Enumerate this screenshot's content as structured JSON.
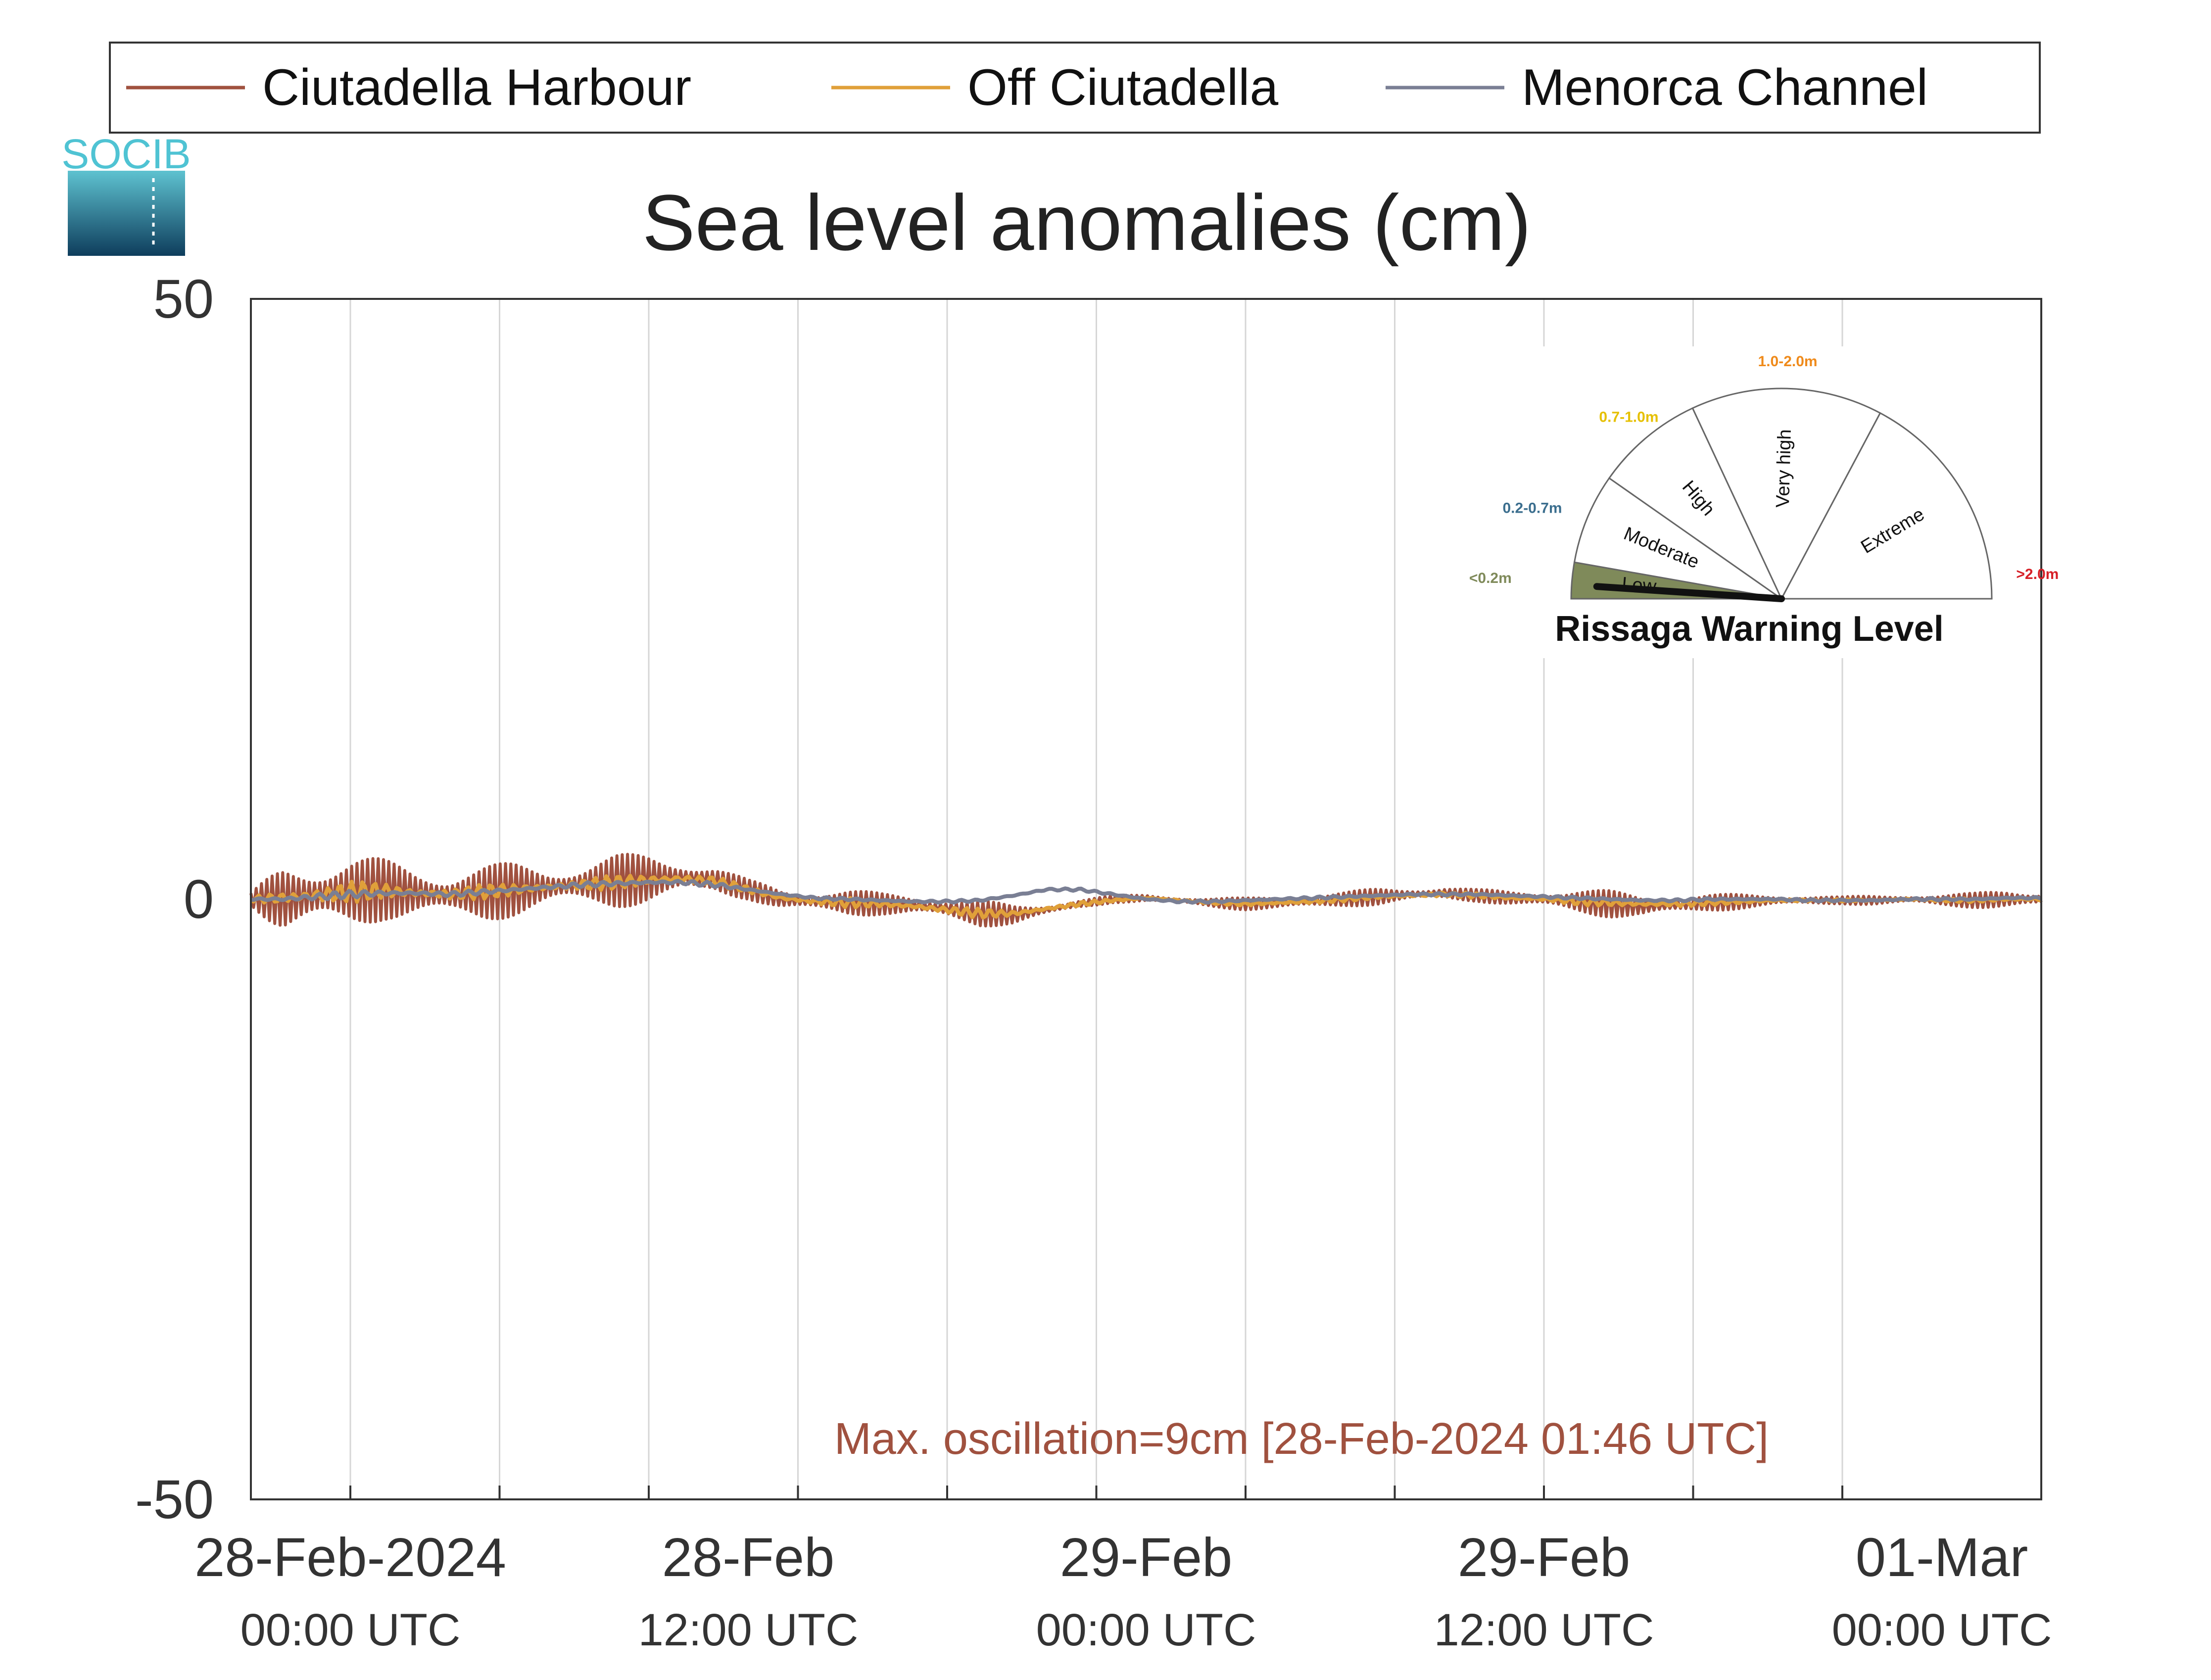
{
  "logo": {
    "text": "SOCIB"
  },
  "chart_data": {
    "type": "line",
    "title": "Sea level anomalies (cm)",
    "xlabel": "",
    "ylabel": "",
    "ylim": [
      -50,
      50
    ],
    "yticks": [
      "50",
      "0",
      "-50"
    ],
    "x_unit": "hours since 28-Feb-2024 00:00 UTC",
    "xlim": [
      -3,
      51
    ],
    "xticks": [
      {
        "x": 0,
        "line1": "28-Feb-2024",
        "line2": "00:00 UTC"
      },
      {
        "x": 12,
        "line1": "28-Feb",
        "line2": "12:00 UTC"
      },
      {
        "x": 24,
        "line1": "29-Feb",
        "line2": "00:00 UTC"
      },
      {
        "x": 36,
        "line1": "29-Feb",
        "line2": "12:00 UTC"
      },
      {
        "x": 48,
        "line1": "01-Mar",
        "line2": "00:00 UTC"
      }
    ],
    "grid": "vertical",
    "legend_position": "top",
    "series": [
      {
        "name": "Ciutadella Harbour",
        "color": "#a0513f",
        "x": [
          -3,
          -2,
          -1,
          0,
          1,
          2,
          3,
          4,
          5,
          6,
          7,
          8,
          9,
          10,
          11,
          12,
          13,
          14,
          15,
          16,
          17,
          18,
          19,
          20,
          21,
          22,
          23,
          24,
          25,
          26,
          27,
          28,
          29,
          30,
          31,
          32,
          33,
          34,
          35,
          36,
          37,
          38,
          39,
          40,
          41,
          42,
          43,
          44,
          45,
          46,
          47,
          48,
          49,
          50,
          51
        ],
        "mean": [
          0,
          0,
          0.3,
          0.6,
          0.8,
          0.5,
          0.3,
          0.5,
          0.8,
          1.0,
          1.2,
          1.5,
          1.7,
          1.8,
          1.6,
          0.8,
          0.0,
          -0.2,
          -0.3,
          -0.4,
          -0.5,
          -0.8,
          -1.2,
          -1.3,
          -0.9,
          -0.4,
          0.0,
          0.1,
          -0.1,
          -0.3,
          -0.4,
          -0.3,
          -0.2,
          0.0,
          0.2,
          0.4,
          0.5,
          0.3,
          0.1,
          0.0,
          -0.2,
          -0.4,
          -0.6,
          -0.5,
          -0.3,
          -0.2,
          -0.1,
          -0.1,
          -0.1,
          -0.1,
          0.0,
          -0.1,
          -0.1,
          0.0,
          0.0
        ],
        "amp": [
          0.5,
          3.0,
          3.5,
          3.2,
          2.5,
          2.2,
          2.3,
          2.4,
          2.2,
          1.8,
          1.9,
          2.2,
          2.1,
          1.8,
          1.2,
          0.8,
          0.9,
          1.0,
          1.1,
          0.9,
          0.9,
          1.0,
          1.1,
          0.8,
          0.5,
          0.4,
          0.3,
          0.3,
          0.3,
          0.4,
          0.5,
          0.6,
          0.6,
          0.6,
          0.7,
          0.6,
          0.6,
          0.5,
          0.6,
          0.8,
          1.0,
          1.1,
          1.0,
          0.8,
          0.7,
          0.6,
          0.5,
          0.4,
          0.3,
          0.4,
          0.4,
          0.5,
          0.6,
          0.8,
          0.8
        ]
      },
      {
        "name": "Off Ciutadella",
        "color": "#e0a03a",
        "x": [
          -3,
          -2,
          -1,
          0,
          1,
          2,
          3,
          4,
          5,
          6,
          7,
          8,
          9,
          10,
          11,
          12,
          13,
          14,
          15,
          16,
          17,
          18,
          19,
          20,
          21,
          22,
          23,
          24,
          25,
          26,
          27,
          28,
          29,
          30,
          31,
          32,
          33,
          34,
          35,
          36,
          37,
          38,
          39,
          40,
          41,
          42,
          43,
          44,
          45,
          46,
          47,
          48,
          49,
          50,
          51
        ],
        "mean": [
          0,
          0.1,
          0.3,
          0.6,
          0.7,
          0.5,
          0.4,
          0.6,
          0.8,
          1.0,
          1.2,
          1.4,
          1.6,
          1.7,
          1.5,
          0.8,
          0.1,
          -0.2,
          -0.3,
          -0.4,
          -0.6,
          -0.9,
          -1.2,
          -1.2,
          -0.8,
          -0.4,
          -0.1,
          0.1,
          -0.1,
          -0.3,
          -0.4,
          -0.3,
          -0.2,
          0.0,
          0.2,
          0.3,
          0.4,
          0.3,
          0.1,
          0.0,
          -0.2,
          -0.3,
          -0.4,
          -0.4,
          -0.3,
          -0.2,
          -0.1,
          -0.1,
          -0.1,
          -0.1,
          0.0,
          -0.1,
          -0.1,
          0.0,
          0.0
        ],
        "amp": [
          0.2,
          0.8,
          0.9,
          0.9,
          0.7,
          0.6,
          0.6,
          0.6,
          0.6,
          0.5,
          0.5,
          0.6,
          0.6,
          0.5,
          0.4,
          0.3,
          0.3,
          0.3,
          0.4,
          0.3,
          0.3,
          0.3,
          0.4,
          0.3,
          0.2,
          0.2,
          0.1,
          0.1,
          0.1,
          0.1,
          0.2,
          0.2,
          0.2,
          0.2,
          0.2,
          0.2,
          0.2,
          0.2,
          0.2,
          0.2,
          0.3,
          0.3,
          0.3,
          0.3,
          0.2,
          0.2,
          0.2,
          0.1,
          0.1,
          0.1,
          0.1,
          0.1,
          0.2,
          0.2,
          0.2
        ]
      },
      {
        "name": "Menorca Channel",
        "color": "#7a7f94",
        "x": [
          -3,
          -2,
          -1,
          0,
          1,
          2,
          3,
          4,
          5,
          6,
          7,
          8,
          9,
          10,
          11,
          12,
          13,
          14,
          15,
          16,
          17,
          18,
          19,
          20,
          21,
          22,
          23,
          24,
          25,
          26,
          27,
          28,
          29,
          30,
          31,
          32,
          33,
          34,
          35,
          36,
          37,
          38,
          39,
          40,
          41,
          42,
          43,
          44,
          45,
          46,
          47,
          48,
          49,
          50,
          51
        ],
        "mean": [
          0,
          0.0,
          0.2,
          0.4,
          0.5,
          0.5,
          0.4,
          0.6,
          0.8,
          1.0,
          1.2,
          1.3,
          1.4,
          1.4,
          1.2,
          0.8,
          0.4,
          0.1,
          0.0,
          -0.1,
          -0.2,
          -0.2,
          -0.1,
          0.3,
          0.8,
          0.8,
          0.4,
          0.0,
          -0.2,
          -0.2,
          -0.1,
          0.0,
          0.1,
          0.2,
          0.3,
          0.4,
          0.4,
          0.4,
          0.3,
          0.2,
          0.1,
          0.0,
          -0.1,
          -0.1,
          0.0,
          0.0,
          0.0,
          -0.1,
          -0.1,
          -0.1,
          0.0,
          0.0,
          0.0,
          0.1,
          0.1
        ],
        "amp": [
          0.1,
          0.3,
          0.3,
          0.3,
          0.3,
          0.2,
          0.2,
          0.2,
          0.2,
          0.2,
          0.2,
          0.2,
          0.2,
          0.2,
          0.2,
          0.1,
          0.1,
          0.1,
          0.1,
          0.1,
          0.1,
          0.1,
          0.1,
          0.1,
          0.1,
          0.1,
          0.1,
          0.1,
          0.1,
          0.1,
          0.1,
          0.1,
          0.1,
          0.1,
          0.1,
          0.1,
          0.1,
          0.1,
          0.1,
          0.1,
          0.1,
          0.1,
          0.1,
          0.1,
          0.1,
          0.1,
          0.1,
          0.1,
          0.1,
          0.1,
          0.1,
          0.1,
          0.1,
          0.1,
          0.1
        ]
      }
    ],
    "annotation": {
      "text": "Max. oscillation=9cm [28-Feb-2024 01:46 UTC]",
      "color": "#a0513f"
    }
  },
  "gauge": {
    "title": "Rissaga Warning Level",
    "current_value_m": 0.09,
    "segments": [
      {
        "label": "Low",
        "range": "<0.2m",
        "range_color": "#7f8a5a",
        "fill": "#7f8a5a",
        "active": true
      },
      {
        "label": "Moderate",
        "range": "0.2-0.7m",
        "range_color": "#3b6e8e",
        "fill": "#ffffff",
        "active": false
      },
      {
        "label": "High",
        "range": "0.7-1.0m",
        "range_color": "#e6c000",
        "fill": "#ffffff",
        "active": false
      },
      {
        "label": "Very high",
        "range": "1.0-2.0m",
        "range_color": "#ef8a1a",
        "fill": "#ffffff",
        "active": false
      },
      {
        "label": "Extreme",
        "range": ">2.0m",
        "range_color": "#d61f26",
        "fill": "#ffffff",
        "active": false
      }
    ]
  }
}
